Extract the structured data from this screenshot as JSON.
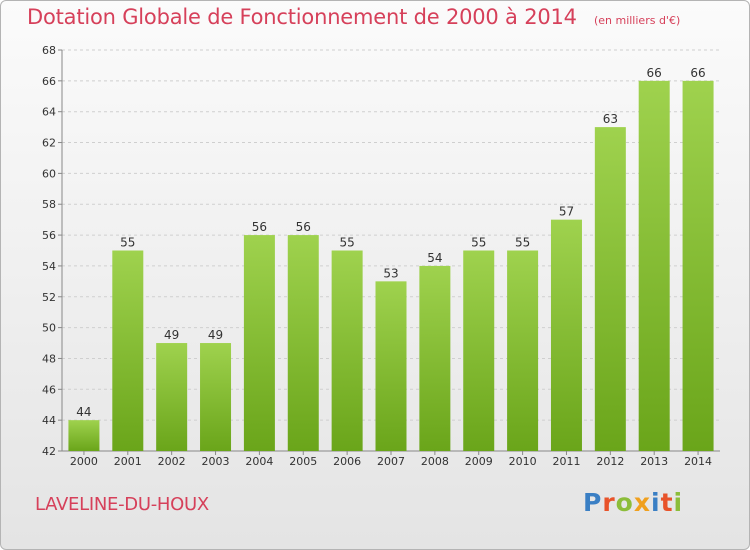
{
  "title": "Dotation Globale de Fonctionnement de 2000 à 2014",
  "unit_note": "(en milliers d'€)",
  "commune": "LAVELINE-DU-HOUX",
  "logo": {
    "text": "Proxiti",
    "letter_colors": [
      "#3a7fc4",
      "#e8532a",
      "#8cbd3a",
      "#f0a01e",
      "#3a7fc4",
      "#e8532a",
      "#8cbd3a"
    ]
  },
  "colors": {
    "title": "#d6405a",
    "bar_light": "#9fd24e",
    "bar_dark": "#6aa51a",
    "grid": "#cfcfcf",
    "axis_text": "#333333"
  },
  "chart_data": {
    "type": "bar",
    "title": "Dotation Globale de Fonctionnement de 2000 à 2014",
    "categories": [
      "2000",
      "2001",
      "2002",
      "2003",
      "2004",
      "2005",
      "2006",
      "2007",
      "2008",
      "2009",
      "2010",
      "2011",
      "2012",
      "2013",
      "2014"
    ],
    "values": [
      44,
      55,
      49,
      49,
      56,
      56,
      55,
      53,
      54,
      55,
      55,
      57,
      63,
      66,
      66
    ],
    "data_labels": [
      "44",
      "55",
      "49",
      "49",
      "56",
      "56",
      "55",
      "53",
      "54",
      "55",
      "55",
      "57",
      "63",
      "66",
      "66"
    ],
    "ylim": [
      42,
      68
    ],
    "yticks": [
      42,
      44,
      46,
      48,
      50,
      52,
      54,
      56,
      58,
      60,
      62,
      64,
      66,
      68
    ],
    "ytick_labels": [
      "42",
      "44",
      "46",
      "48",
      "50",
      "52",
      "54",
      "56",
      "58",
      "60",
      "62",
      "64",
      "66",
      "68"
    ],
    "grid": true,
    "xlabel": "",
    "ylabel": ""
  }
}
